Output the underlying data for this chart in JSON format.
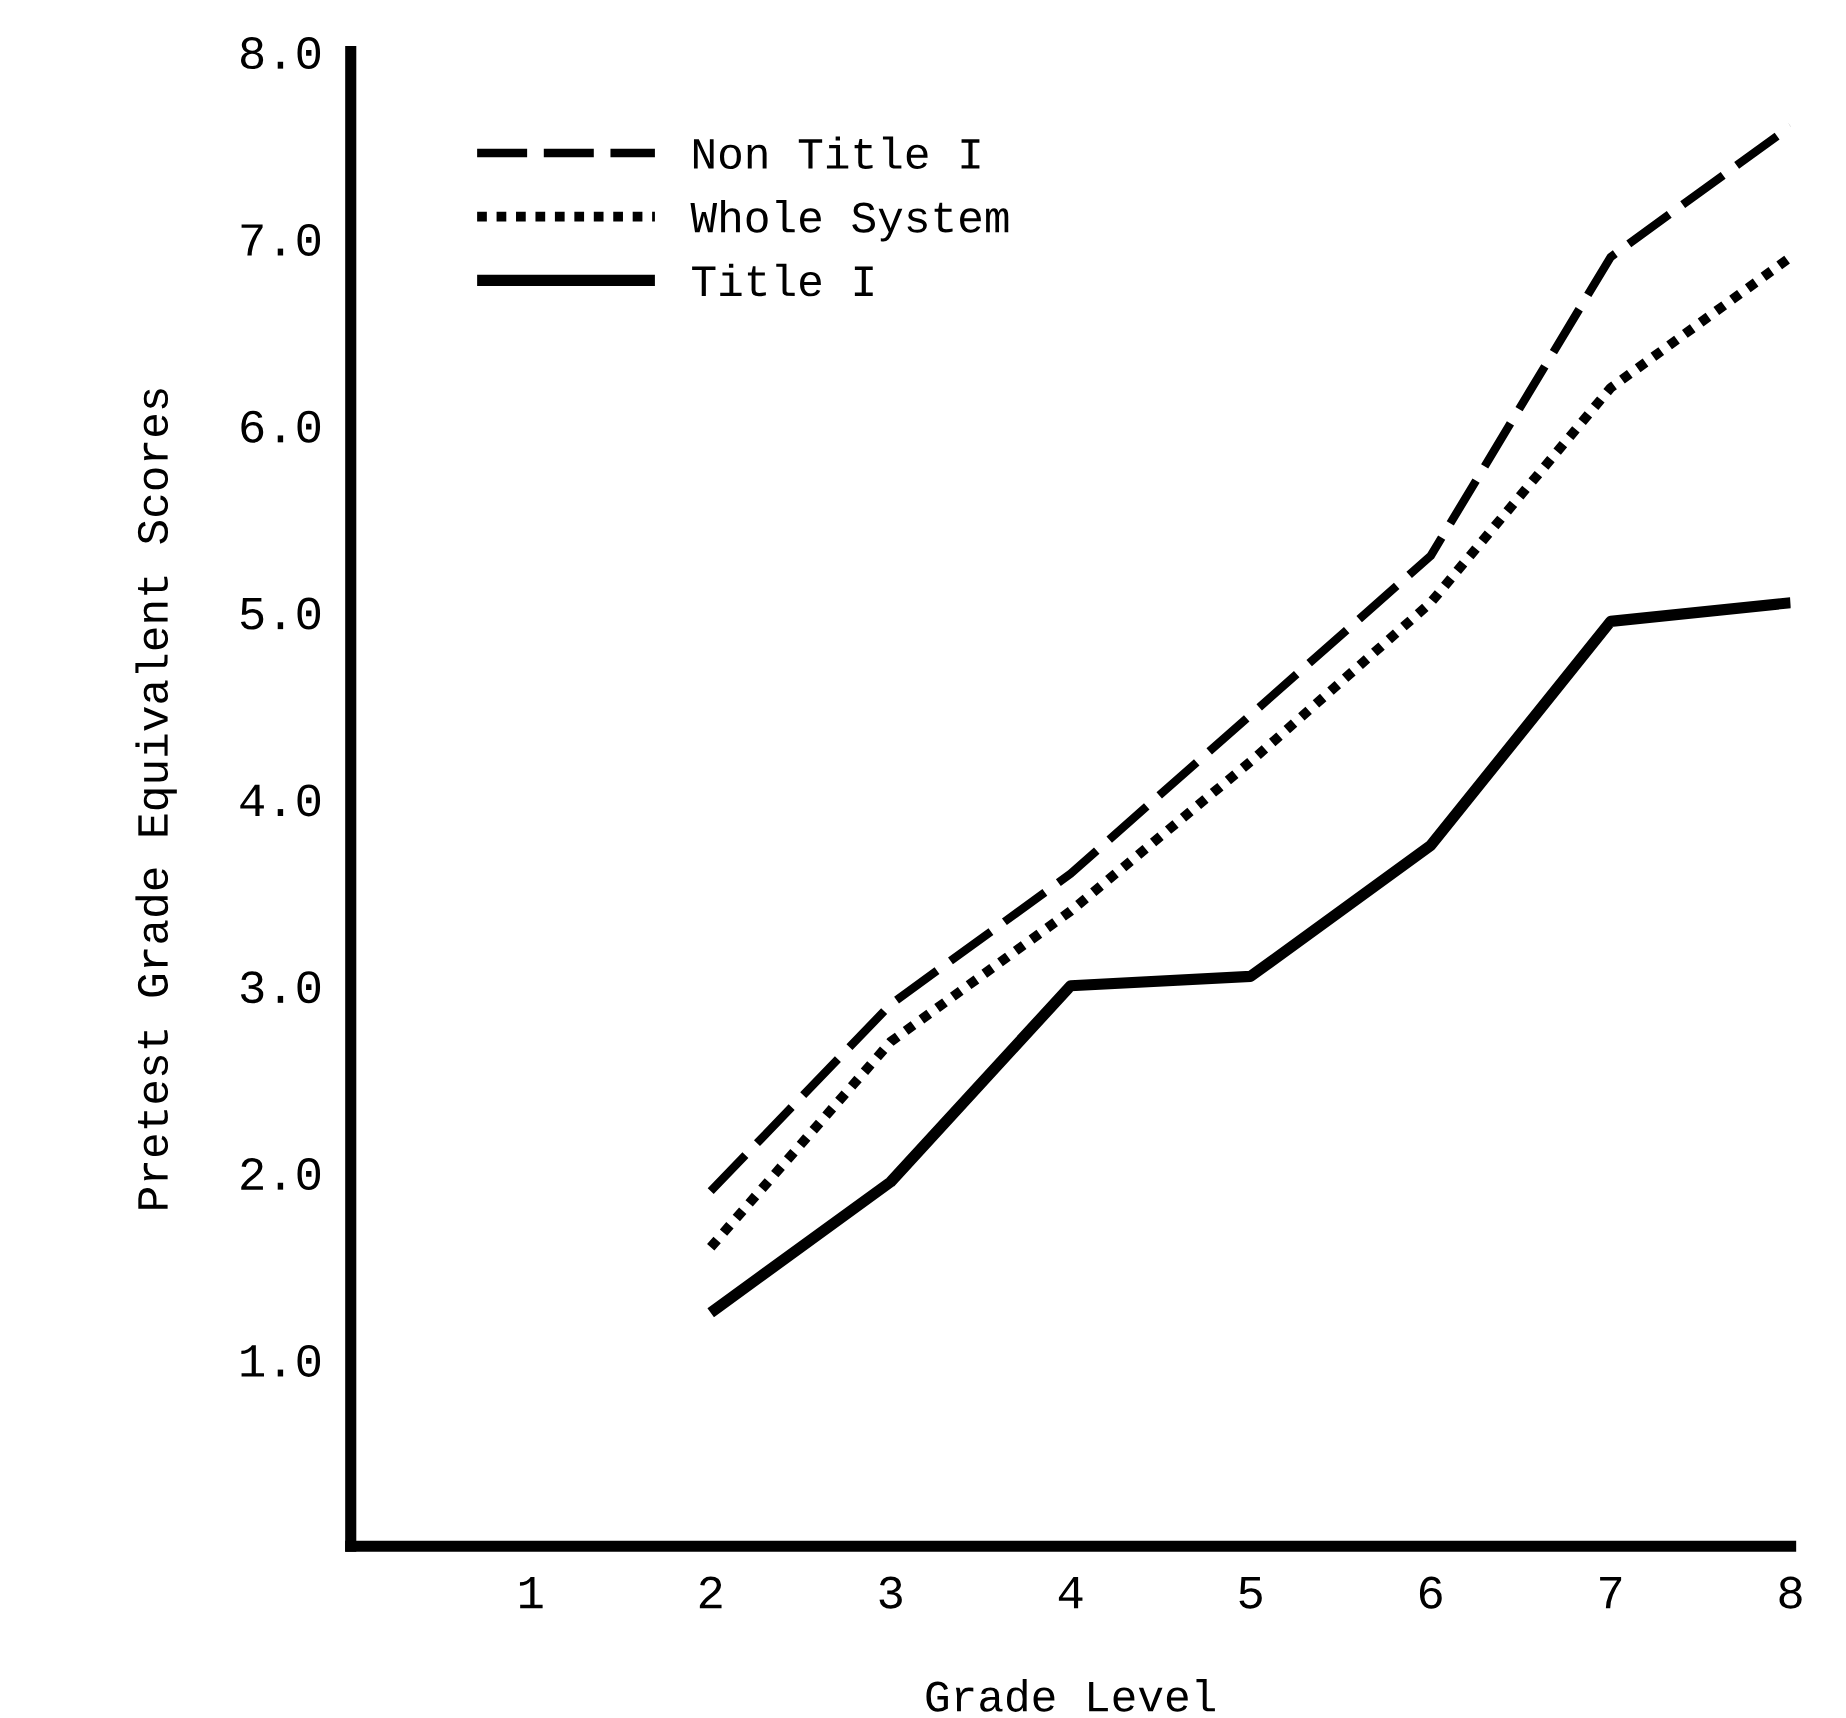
{
  "chart_data": {
    "type": "line",
    "xlabel": "Grade Level",
    "ylabel": "Pretest Grade Equivalent Scores",
    "xlim": [
      0,
      8
    ],
    "ylim": [
      0,
      8
    ],
    "xticks": [
      1,
      2,
      3,
      4,
      5,
      6,
      7,
      8
    ],
    "yticks": [
      {
        "value": 1,
        "label": "1.0"
      },
      {
        "value": 2,
        "label": "2.0"
      },
      {
        "value": 3,
        "label": "3.0"
      },
      {
        "value": 4,
        "label": "4.0"
      },
      {
        "value": 5,
        "label": "5.0"
      },
      {
        "value": 6,
        "label": "6.0"
      },
      {
        "value": 7,
        "label": "7.0"
      },
      {
        "value": 8,
        "label": "8.0"
      }
    ],
    "x": [
      2,
      3,
      4,
      5,
      6,
      7,
      8
    ],
    "grid": false,
    "legend": "top left",
    "series": [
      {
        "name": "Non Title I",
        "color": "#000000",
        "line_style": "dashed",
        "values": [
          1.9,
          2.9,
          3.6,
          4.45,
          5.3,
          6.9,
          7.6
        ]
      },
      {
        "name": "Whole System",
        "color": "#000000",
        "line_style": "dotted",
        "values": [
          1.6,
          2.7,
          3.4,
          4.2,
          5.05,
          6.2,
          6.9
        ]
      },
      {
        "name": "Title I",
        "color": "#000000",
        "line_style": "solid",
        "values": [
          1.25,
          1.95,
          3.0,
          3.05,
          3.75,
          4.95,
          5.05
        ]
      }
    ]
  }
}
